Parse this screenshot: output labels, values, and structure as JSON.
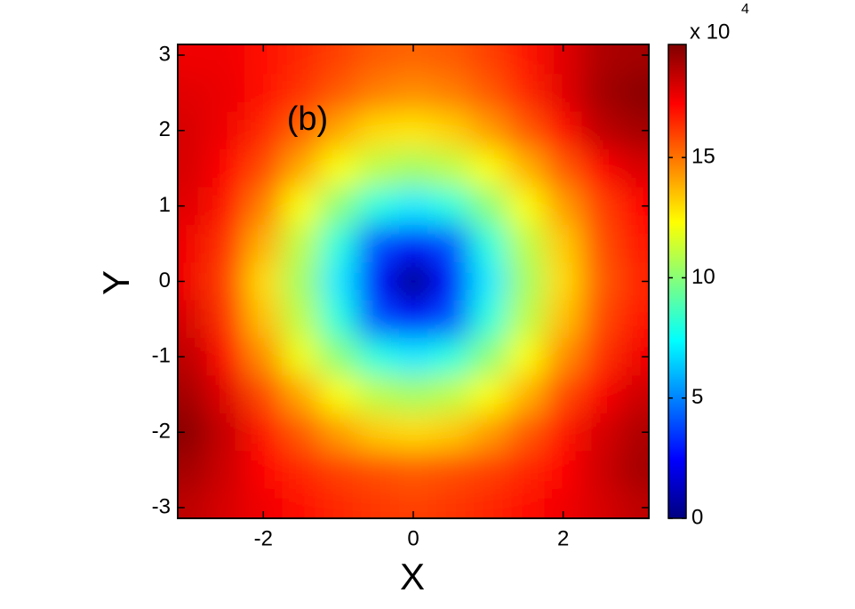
{
  "chart_data": {
    "type": "heatmap",
    "annotation": "(b)",
    "xlabel": "X",
    "ylabel": "Y",
    "x": [
      -3,
      -2.5,
      -2,
      -1.5,
      -1,
      -0.5,
      0,
      0.5,
      1,
      1.5,
      2,
      2.5,
      3
    ],
    "y": [
      3,
      2.5,
      2,
      1.5,
      1,
      0.5,
      0,
      -0.5,
      -1,
      -1.5,
      -2,
      -2.5,
      -3
    ],
    "z": [
      [
        17.5,
        17.5,
        17,
        16.5,
        16,
        15.5,
        15.3,
        15.5,
        16,
        16.8,
        17.8,
        18.8,
        19
      ],
      [
        17.8,
        17.6,
        17,
        16.3,
        15.5,
        14.8,
        14.5,
        14.8,
        15.5,
        16.5,
        17.8,
        19,
        19.5
      ],
      [
        18,
        17.5,
        16.5,
        15.3,
        14,
        13,
        12.8,
        13.2,
        14.2,
        15.5,
        17,
        18.5,
        19
      ],
      [
        18,
        17.2,
        15.8,
        14,
        12.2,
        11,
        10.5,
        11,
        12.2,
        13.8,
        15.5,
        17.2,
        18
      ],
      [
        17.8,
        16.8,
        14.8,
        12.2,
        10,
        8,
        7,
        8,
        10,
        12.2,
        14.2,
        16,
        17.2
      ],
      [
        17.5,
        16.3,
        13.8,
        11,
        8,
        4,
        2.5,
        4,
        8,
        11,
        13.3,
        15.7,
        16.8
      ],
      [
        17.5,
        16,
        13,
        10.5,
        7,
        2.5,
        0,
        2.5,
        7,
        10.5,
        13,
        15.5,
        16.5
      ],
      [
        18,
        16.3,
        13.5,
        11,
        8,
        4,
        2.5,
        4,
        8,
        11,
        13.5,
        15.8,
        16.8
      ],
      [
        18.5,
        17,
        14.5,
        12,
        10,
        8,
        7,
        8,
        10,
        12.2,
        14.5,
        16.3,
        17.5
      ],
      [
        19,
        17.8,
        15.8,
        14,
        12.2,
        11,
        10.5,
        11,
        12.2,
        13.8,
        15.8,
        17.3,
        18.2
      ],
      [
        19.5,
        18.3,
        16.8,
        15.5,
        14.2,
        13.3,
        13,
        13.3,
        14.2,
        15.5,
        16.8,
        18,
        18.8
      ],
      [
        19,
        18.2,
        17.2,
        16.5,
        16,
        15.7,
        15.5,
        15.7,
        16,
        16.5,
        17.2,
        18.2,
        19
      ],
      [
        18.5,
        18,
        17.5,
        17,
        16.5,
        16.2,
        16,
        16.2,
        16.5,
        17,
        17.5,
        18,
        18.5
      ]
    ],
    "xlim": [
      -3.1416,
      3.1416
    ],
    "ylim": [
      -3.1416,
      3.1416
    ],
    "xticks": [
      -2,
      0,
      2
    ],
    "yticks": [
      -3,
      -2,
      -1,
      0,
      1,
      2,
      3
    ],
    "colormap": "jet",
    "clim": [
      0,
      19.7
    ],
    "cticks": [
      0,
      5,
      10,
      15
    ],
    "colorbar_label": "x 10",
    "colorbar_exponent": "4"
  }
}
